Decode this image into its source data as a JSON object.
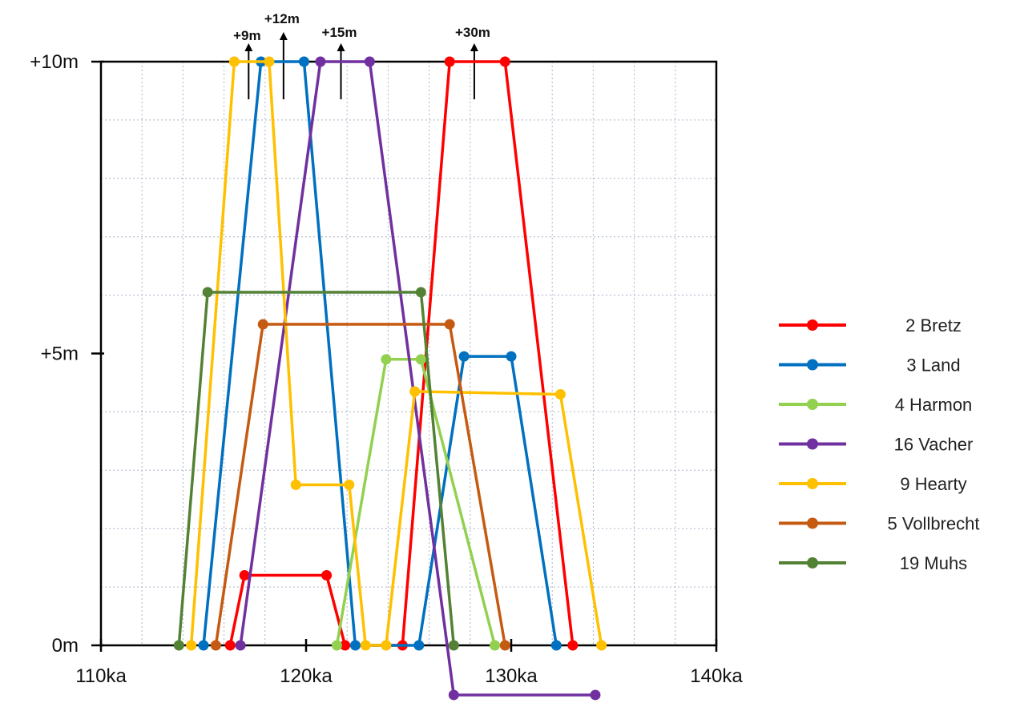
{
  "chart_data": {
    "type": "line",
    "title": "",
    "xlabel": "",
    "ylabel": "",
    "xlim": [
      110,
      140
    ],
    "ylim": [
      0,
      10
    ],
    "grid": true,
    "legend_position": "right",
    "x_ticks": [
      {
        "value": 110,
        "label": "110ka"
      },
      {
        "value": 120,
        "label": "120ka"
      },
      {
        "value": 130,
        "label": "130ka"
      },
      {
        "value": 140,
        "label": "140ka"
      }
    ],
    "y_ticks": [
      {
        "value": 0,
        "label": "0m"
      },
      {
        "value": 5,
        "label": "+5m"
      },
      {
        "value": 10,
        "label": "+10m"
      }
    ],
    "annotations": [
      {
        "label": "+9m",
        "x": 117.2
      },
      {
        "label": "+12m",
        "x": 118.9
      },
      {
        "label": "+15m",
        "x": 121.7
      },
      {
        "label": "+30m",
        "x": 128.2
      }
    ],
    "series": [
      {
        "name": "2 Bretz",
        "color": "#ff0000",
        "points": [
          [
            116.3,
            0
          ],
          [
            117.0,
            1.2
          ],
          [
            121.0,
            1.2
          ],
          [
            121.9,
            0
          ],
          [
            124.7,
            0
          ],
          [
            127.0,
            10
          ],
          [
            129.7,
            10
          ],
          [
            133.0,
            0
          ]
        ]
      },
      {
        "name": "3 Land",
        "color": "#0070c0",
        "points": [
          [
            115.0,
            0
          ],
          [
            117.8,
            10
          ],
          [
            119.9,
            10
          ],
          [
            122.4,
            0
          ],
          [
            125.5,
            0
          ],
          [
            127.7,
            4.95
          ],
          [
            130.0,
            4.95
          ],
          [
            132.2,
            0
          ]
        ]
      },
      {
        "name": "4 Harmon",
        "color": "#92d050",
        "points": [
          [
            121.5,
            0
          ],
          [
            123.9,
            4.9
          ],
          [
            125.6,
            4.9
          ],
          [
            129.2,
            0
          ]
        ]
      },
      {
        "name": "16 Vacher",
        "color": "#7030a0",
        "points": [
          [
            116.8,
            0
          ],
          [
            120.7,
            10
          ],
          [
            123.1,
            10
          ],
          [
            127.2,
            -0.85
          ],
          [
            134.1,
            -0.85
          ]
        ]
      },
      {
        "name": "9 Hearty",
        "color": "#ffc000",
        "points": [
          [
            114.4,
            0
          ],
          [
            116.5,
            10
          ],
          [
            118.2,
            10
          ],
          [
            119.5,
            2.75
          ],
          [
            122.1,
            2.75
          ],
          [
            122.9,
            0
          ],
          [
            123.9,
            0
          ],
          [
            125.3,
            4.35
          ],
          [
            132.4,
            4.3
          ],
          [
            134.4,
            0
          ]
        ]
      },
      {
        "name": "5 Vollbrecht",
        "color": "#c55a11",
        "points": [
          [
            115.6,
            0
          ],
          [
            117.9,
            5.5
          ],
          [
            127.0,
            5.5
          ],
          [
            129.7,
            0
          ]
        ]
      },
      {
        "name": "19 Muhs",
        "color": "#548235",
        "points": [
          [
            113.8,
            0
          ],
          [
            115.2,
            6.05
          ],
          [
            125.6,
            6.05
          ],
          [
            127.2,
            0
          ]
        ]
      }
    ]
  }
}
